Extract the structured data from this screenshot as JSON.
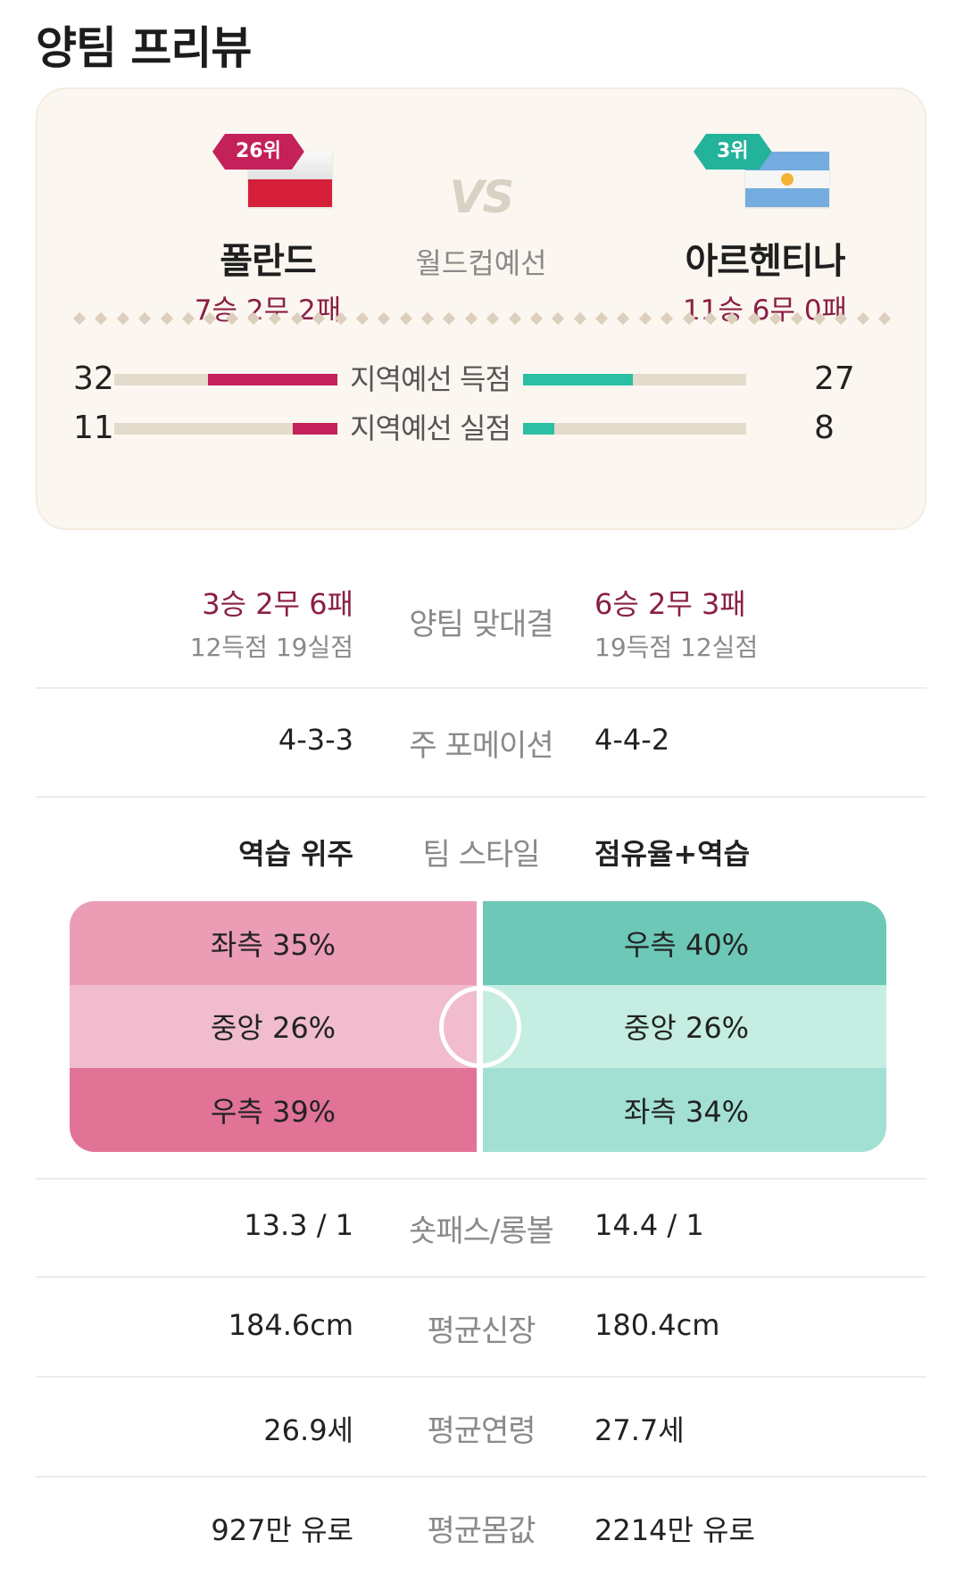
{
  "page_title": "양팀 프리뷰",
  "match": {
    "vs": "VS",
    "type": "월드컵예선",
    "home": {
      "rank": "26위",
      "name": "폴란드",
      "record": "7승 2무 2패",
      "flag": "poland-flag"
    },
    "away": {
      "rank": "3위",
      "name": "아르헨티나",
      "record": "11승 6무 0패",
      "flag": "argentina-flag"
    }
  },
  "regional_stats": [
    {
      "label": "지역예선 득점",
      "home": "32",
      "away": "27",
      "home_fill": 0.58,
      "away_fill": 0.49
    },
    {
      "label": "지역예선 실점",
      "home": "11",
      "away": "8",
      "home_fill": 0.2,
      "away_fill": 0.14
    }
  ],
  "head_to_head": {
    "label": "양팀 맞대결",
    "home_record": "3승 2무 6패",
    "home_goals": "12득점 19실점",
    "away_record": "6승 2무 3패",
    "away_goals": "19득점 12실점"
  },
  "formation": {
    "label": "주 포메이션",
    "home": "4-3-3",
    "away": "4-4-2"
  },
  "style": {
    "label": "팀 스타일",
    "home": "역습 위주",
    "away": "점유율+역습"
  },
  "attack_direction": {
    "home": [
      "좌측 35%",
      "중앙 26%",
      "우측 39%"
    ],
    "away": [
      "우측 40%",
      "중앙 26%",
      "좌측 34%"
    ]
  },
  "stats": [
    {
      "label": "숏패스/롱볼",
      "home": "13.3 / 1",
      "away": "14.4 / 1"
    },
    {
      "label": "평균신장",
      "home": "184.6cm",
      "away": "180.4cm"
    },
    {
      "label": "평균연령",
      "home": "26.9세",
      "away": "27.7세"
    },
    {
      "label": "평균몸값",
      "home": "927만 유로",
      "away": "2214만 유로"
    }
  ],
  "colors": {
    "home": "#c4205a",
    "away": "#2bbfa4",
    "record": "#8a1f45"
  }
}
